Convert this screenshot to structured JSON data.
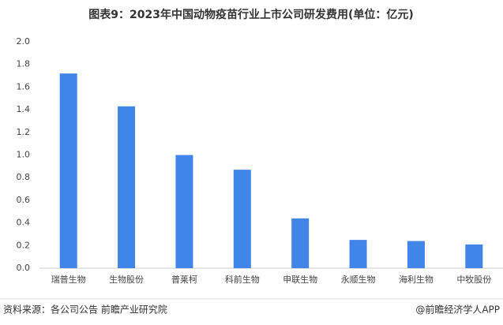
{
  "chart_data": {
    "type": "bar",
    "title": "图表9：2023年中国动物疫苗行业上市公司研发费用(单位：亿元)",
    "categories": [
      "瑞普生物",
      "生物股份",
      "普莱柯",
      "科前生物",
      "申联生物",
      "永顺生物",
      "海利生物",
      "中牧股份"
    ],
    "values": [
      1.72,
      1.43,
      1.0,
      0.87,
      0.44,
      0.25,
      0.24,
      0.21
    ],
    "color": "#4285e8",
    "ylim": [
      0,
      2
    ],
    "yticks": [
      {
        "value": 0,
        "label": "0.0"
      },
      0.2,
      0.4,
      0.6,
      0.8,
      {
        "value": 1,
        "label": "1.0"
      },
      1.2,
      1.4,
      1.6,
      1.8,
      {
        "value": 2,
        "label": "2.0"
      }
    ],
    "grid": false,
    "source": "资料来源：各公司公告 前瞻产业研究院",
    "credit": "@前瞻经济学人APP"
  }
}
